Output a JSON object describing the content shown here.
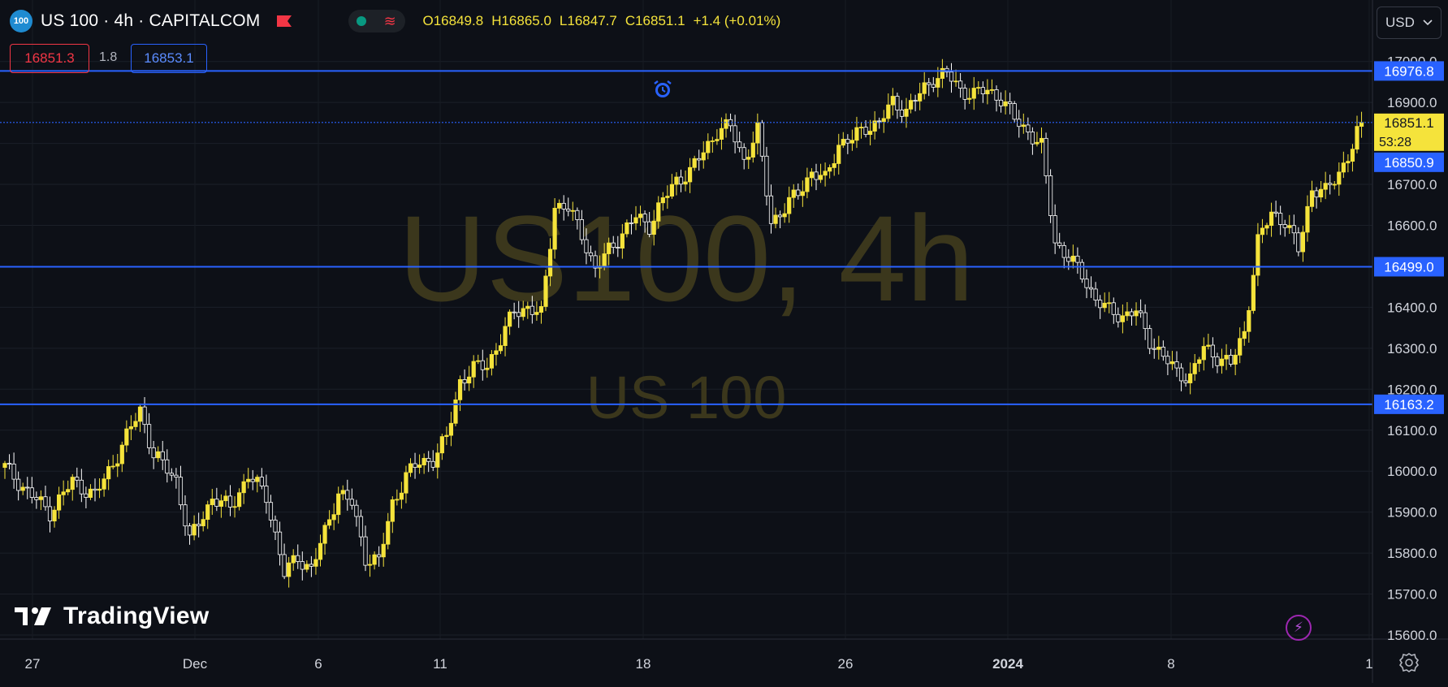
{
  "header": {
    "badge": "100",
    "title": "US 100 · 4h · CAPITALCOM",
    "open": "O16849.8",
    "high": "H16865.0",
    "low": "L16847.7",
    "close": "C16851.1",
    "change": "+1.4 (+0.01%)"
  },
  "quotes": {
    "bid": "16851.3",
    "spread": "1.8",
    "ask": "16853.1"
  },
  "currency": "USD",
  "watermark": {
    "main": "US100, 4h",
    "sub": "US 100"
  },
  "brand": "TradingView",
  "colors": {
    "up": "#f5e33b",
    "down": "#ffffff",
    "level": "#2962ff",
    "background": "#0d1017"
  },
  "price_tag": {
    "value": "16851.1",
    "countdown": "53:28",
    "second": "16850.9"
  },
  "level_tags": [
    "16976.8",
    "16499.0",
    "16163.2"
  ],
  "icons": [
    "alarm-icon",
    "flag-icon",
    "lightning-icon",
    "gear-icon",
    "chevron-down-icon"
  ],
  "chart_data": {
    "type": "candlestick",
    "title": "US100, 4h",
    "ylim": [
      15560,
      17010
    ],
    "y_ticks": [
      15600,
      15700,
      15800,
      15900,
      16000,
      16100,
      16200,
      16300,
      16400,
      16500,
      16600,
      16700,
      16800,
      16900,
      17000
    ],
    "y_tick_labels": [
      "15600.0",
      "15700.0",
      "15800.0",
      "15900.0",
      "16000.0",
      "16100.0",
      "16200.0",
      "16300.0",
      "16400.0",
      "16500.0",
      "16600.0",
      "16700.0",
      "16800.0",
      "16900.0",
      "17000.0"
    ],
    "x_tick_labels": [
      "27",
      "Dec",
      "6",
      "11",
      "18",
      "26",
      "2024",
      "8",
      "1"
    ],
    "horizontal_levels": [
      16976.8,
      16499.0,
      16163.2
    ],
    "last_price": 16851.1,
    "close_path": [
      [
        0,
        16010
      ],
      [
        5,
        15950
      ],
      [
        10,
        15900
      ],
      [
        15,
        15975
      ],
      [
        20,
        15940
      ],
      [
        25,
        16040
      ],
      [
        30,
        16150
      ],
      [
        33,
        16040
      ],
      [
        38,
        15980
      ],
      [
        41,
        15830
      ],
      [
        46,
        15935
      ],
      [
        50,
        15910
      ],
      [
        54,
        15990
      ],
      [
        58,
        15940
      ],
      [
        62,
        15750
      ],
      [
        65,
        15790
      ],
      [
        68,
        15760
      ],
      [
        71,
        15850
      ],
      [
        74,
        15950
      ],
      [
        77,
        15920
      ],
      [
        80,
        15790
      ],
      [
        83,
        15780
      ],
      [
        86,
        15920
      ],
      [
        89,
        15990
      ],
      [
        92,
        16020
      ],
      [
        95,
        16030
      ],
      [
        98,
        16080
      ],
      [
        101,
        16220
      ],
      [
        104,
        16250
      ],
      [
        107,
        16260
      ],
      [
        110,
        16320
      ],
      [
        113,
        16390
      ],
      [
        116,
        16400
      ],
      [
        119,
        16380
      ],
      [
        122,
        16650
      ],
      [
        125,
        16640
      ],
      [
        128,
        16580
      ],
      [
        131,
        16490
      ],
      [
        134,
        16540
      ],
      [
        137,
        16580
      ],
      [
        140,
        16620
      ],
      [
        143,
        16600
      ],
      [
        146,
        16660
      ],
      [
        149,
        16710
      ],
      [
        152,
        16730
      ],
      [
        155,
        16780
      ],
      [
        158,
        16830
      ],
      [
        161,
        16840
      ],
      [
        164,
        16760
      ],
      [
        167,
        16830
      ],
      [
        170,
        16610
      ],
      [
        173,
        16640
      ],
      [
        176,
        16680
      ],
      [
        179,
        16730
      ],
      [
        182,
        16710
      ],
      [
        185,
        16800
      ],
      [
        188,
        16810
      ],
      [
        191,
        16840
      ],
      [
        194,
        16850
      ],
      [
        197,
        16900
      ],
      [
        200,
        16880
      ],
      [
        203,
        16920
      ],
      [
        206,
        16960
      ],
      [
        209,
        16970
      ],
      [
        212,
        16930
      ],
      [
        215,
        16920
      ],
      [
        218,
        16930
      ],
      [
        221,
        16910
      ],
      [
        224,
        16860
      ],
      [
        227,
        16830
      ],
      [
        230,
        16790
      ],
      [
        233,
        16560
      ],
      [
        236,
        16520
      ],
      [
        239,
        16480
      ],
      [
        242,
        16420
      ],
      [
        245,
        16390
      ],
      [
        248,
        16380
      ],
      [
        251,
        16390
      ],
      [
        254,
        16320
      ],
      [
        257,
        16280
      ],
      [
        260,
        16240
      ],
      [
        263,
        16230
      ],
      [
        266,
        16300
      ],
      [
        269,
        16280
      ],
      [
        272,
        16260
      ],
      [
        275,
        16340
      ],
      [
        278,
        16560
      ],
      [
        281,
        16630
      ],
      [
        284,
        16610
      ],
      [
        287,
        16540
      ],
      [
        290,
        16690
      ],
      [
        293,
        16680
      ],
      [
        296,
        16730
      ],
      [
        299,
        16790
      ],
      [
        301,
        16851
      ]
    ]
  }
}
